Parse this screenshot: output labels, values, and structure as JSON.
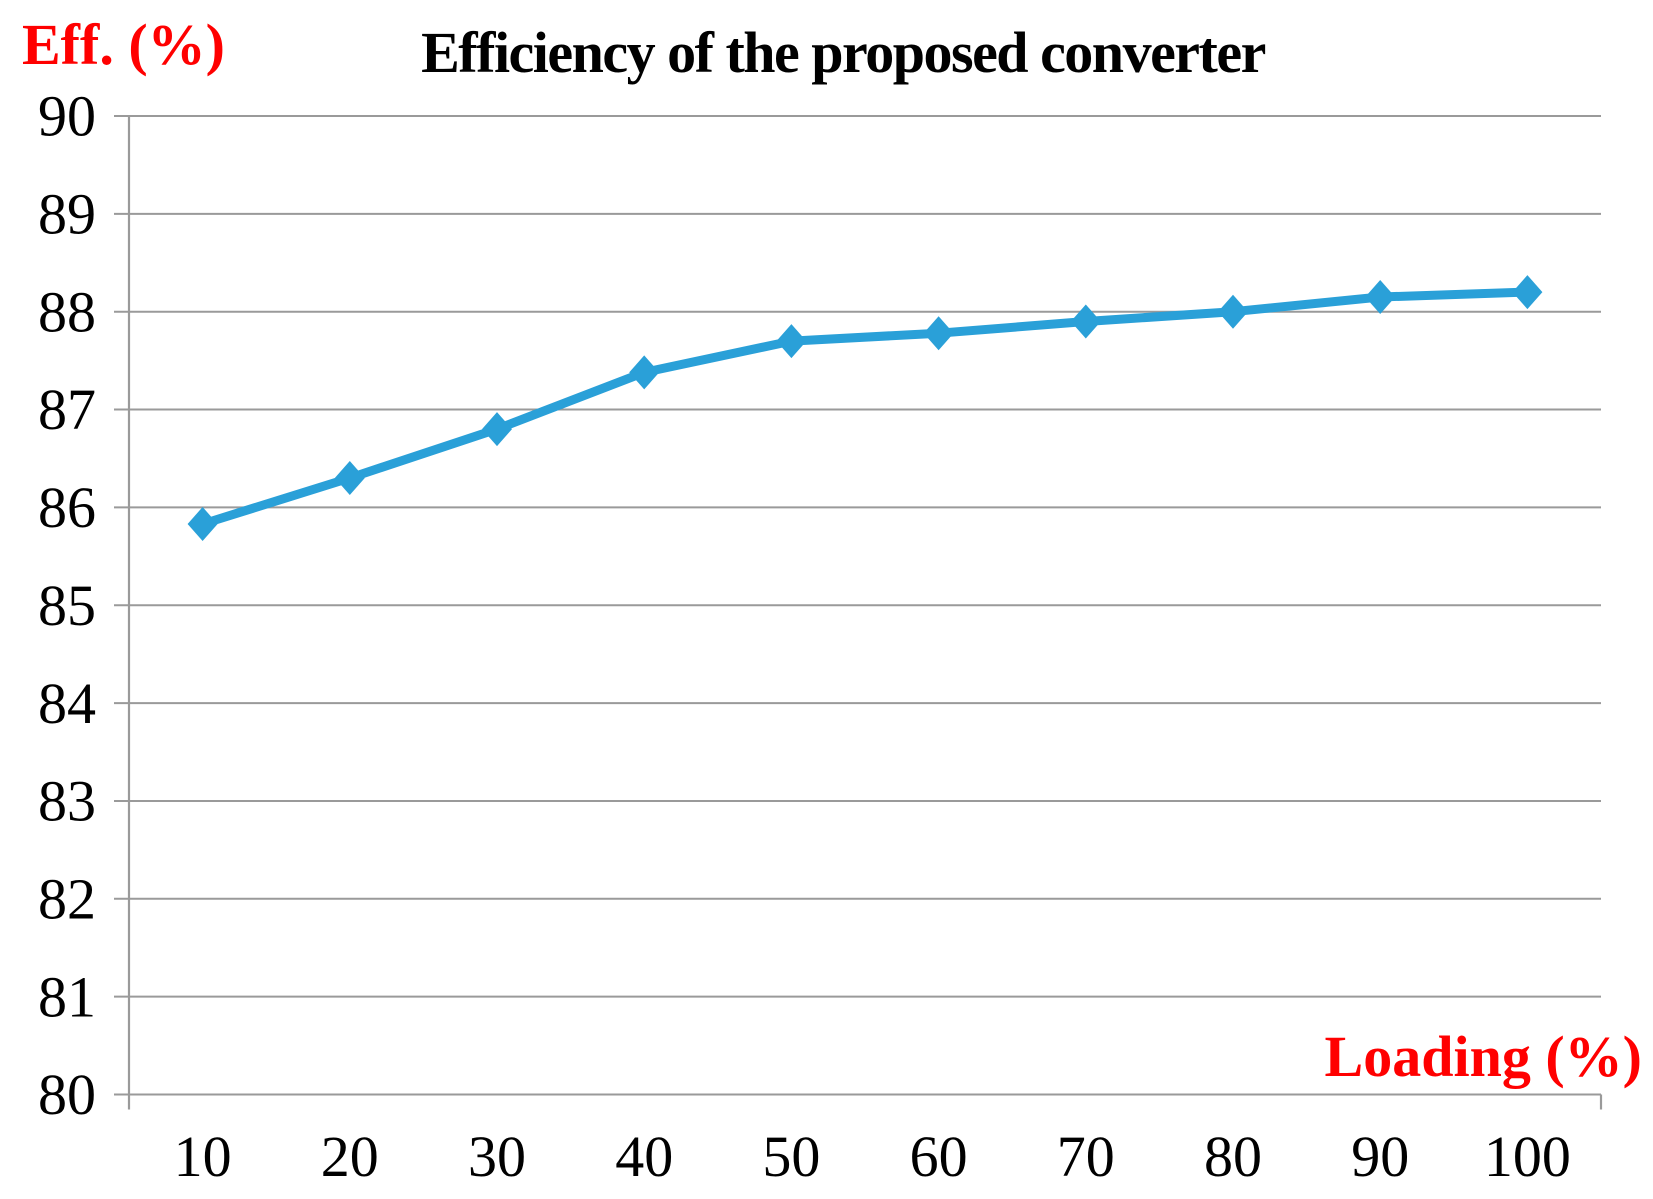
{
  "chart_data": {
    "type": "line",
    "title": "Efficiency of the proposed converter",
    "y_axis_label": "Eff. (%)",
    "x_axis_label": "Loading (%)",
    "categories": [
      10,
      20,
      30,
      40,
      50,
      60,
      70,
      80,
      90,
      100
    ],
    "values": [
      85.83,
      86.3,
      86.8,
      87.38,
      87.7,
      87.78,
      87.9,
      88.0,
      88.15,
      88.2
    ],
    "ylim": [
      80,
      90
    ],
    "y_ticks": [
      80,
      81,
      82,
      83,
      84,
      85,
      86,
      87,
      88,
      89,
      90
    ],
    "grid": "horizontal",
    "legend": "none",
    "marker": "diamond",
    "colors": {
      "line": "#2AA0D8",
      "axis_titles": "#FF0000",
      "title": "#000000",
      "grid": "#9A9A9A",
      "tick_labels": "#000000",
      "background": "#FFFFFF"
    }
  }
}
